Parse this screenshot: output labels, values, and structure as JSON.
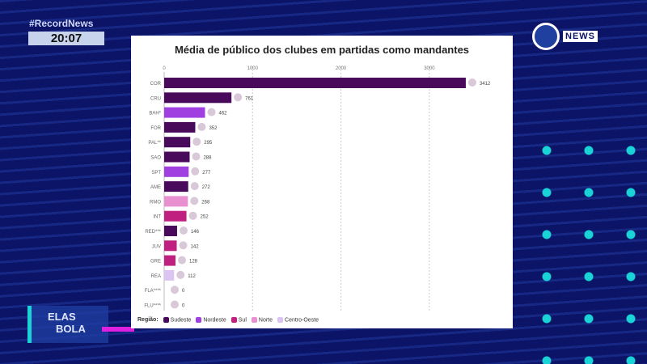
{
  "broadcast": {
    "hashtag": "#RecordNews",
    "time": "20:07",
    "channel_logo": "NEWS",
    "program": [
      "ELAS",
      "BOLA"
    ]
  },
  "chart_data": {
    "type": "bar",
    "orientation": "horizontal",
    "title": "Média de público dos clubes em partidas como mandantes",
    "x_ticks": [
      "0",
      "1000",
      "2000",
      "3000"
    ],
    "xlim": [
      0,
      3500
    ],
    "grid": true,
    "categories": [
      "COR",
      "CRU",
      "BAH*",
      "FOR",
      "PAL**",
      "SAO",
      "SPT",
      "AME",
      "RMO",
      "INT",
      "RED***",
      "JUV",
      "GRE",
      "REA",
      "FLA****",
      "FLU****"
    ],
    "values": [
      3412,
      761,
      462,
      352,
      295,
      288,
      277,
      272,
      268,
      252,
      146,
      142,
      128,
      112,
      0,
      0
    ],
    "regions": [
      "Sudeste",
      "Sudeste",
      "Nordeste",
      "Sudeste",
      "Sudeste",
      "Sudeste",
      "Nordeste",
      "Sudeste",
      "Norte",
      "Sul",
      "Sudeste",
      "Sul",
      "Sul",
      "Centro-Oeste",
      "Sudeste",
      "Sudeste"
    ],
    "legend": {
      "title": "Região:",
      "items": [
        {
          "name": "Sudeste",
          "color": "#4a0a5c"
        },
        {
          "name": "Nordeste",
          "color": "#a040e0"
        },
        {
          "name": "Sul",
          "color": "#c02080"
        },
        {
          "name": "Norte",
          "color": "#e890d0"
        },
        {
          "name": "Centro-Oeste",
          "color": "#dcc4f2"
        }
      ]
    },
    "legend_position": "bottom"
  }
}
